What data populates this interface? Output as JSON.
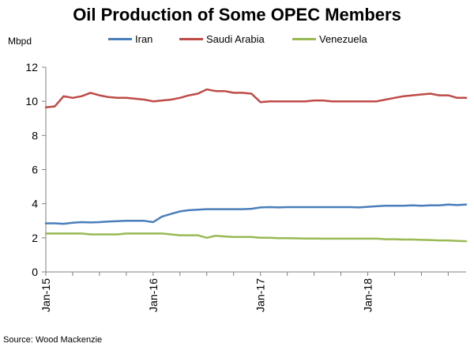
{
  "header": {
    "title": "Oil Production of Some OPEC Members",
    "unit": "Mbpd"
  },
  "footer": {
    "source": "Source: Wood Mackenzie"
  },
  "legend": [
    {
      "label": "Iran",
      "color": "#4a7ebb"
    },
    {
      "label": "Saudi Arabia",
      "color": "#be4b48"
    },
    {
      "label": "Venezuela",
      "color": "#98b954"
    }
  ],
  "chart_data": {
    "type": "line",
    "title": "Oil Production of Some OPEC Members",
    "ylabel": "Mbpd",
    "xlabel": "",
    "ylim": [
      0,
      12
    ],
    "yticks": [
      0,
      2,
      4,
      6,
      8,
      10,
      12
    ],
    "x_tick_labels": [
      "Jan-15",
      "Jan-16",
      "Jan-17",
      "Jan-18"
    ],
    "x_tick_months": [
      0,
      12,
      24,
      36
    ],
    "x_range_months": [
      0,
      47
    ],
    "grid": false,
    "legend_position": "top",
    "x": [
      "Jan-15",
      "Feb-15",
      "Mar-15",
      "Apr-15",
      "May-15",
      "Jun-15",
      "Jul-15",
      "Aug-15",
      "Sep-15",
      "Oct-15",
      "Nov-15",
      "Dec-15",
      "Jan-16",
      "Feb-16",
      "Mar-16",
      "Apr-16",
      "May-16",
      "Jun-16",
      "Jul-16",
      "Aug-16",
      "Sep-16",
      "Oct-16",
      "Nov-16",
      "Dec-16",
      "Jan-17",
      "Feb-17",
      "Mar-17",
      "Apr-17",
      "May-17",
      "Jun-17",
      "Jul-17",
      "Aug-17",
      "Sep-17",
      "Oct-17",
      "Nov-17",
      "Dec-17",
      "Jan-18",
      "Feb-18",
      "Mar-18",
      "Apr-18",
      "May-18",
      "Jun-18",
      "Jul-18",
      "Aug-18",
      "Sep-18",
      "Oct-18",
      "Nov-18",
      "Dec-18"
    ],
    "series": [
      {
        "name": "Iran",
        "color": "#4a7ebb",
        "values": [
          2.85,
          2.85,
          2.82,
          2.88,
          2.92,
          2.9,
          2.92,
          2.95,
          2.98,
          3.0,
          3.0,
          3.0,
          2.92,
          3.25,
          3.4,
          3.55,
          3.62,
          3.65,
          3.68,
          3.68,
          3.68,
          3.68,
          3.68,
          3.7,
          3.78,
          3.8,
          3.78,
          3.8,
          3.8,
          3.8,
          3.8,
          3.8,
          3.8,
          3.8,
          3.8,
          3.78,
          3.82,
          3.85,
          3.88,
          3.88,
          3.88,
          3.9,
          3.88,
          3.9,
          3.9,
          3.95,
          3.92,
          3.95
        ]
      },
      {
        "name": "Saudi Arabia",
        "color": "#be4b48",
        "values": [
          9.65,
          9.7,
          10.3,
          10.2,
          10.3,
          10.5,
          10.35,
          10.25,
          10.2,
          10.2,
          10.15,
          10.1,
          10.0,
          10.05,
          10.1,
          10.2,
          10.35,
          10.45,
          10.7,
          10.6,
          10.6,
          10.5,
          10.5,
          10.45,
          9.95,
          10.0,
          10.0,
          10.0,
          10.0,
          10.0,
          10.05,
          10.05,
          10.0,
          10.0,
          10.0,
          10.0,
          10.0,
          10.0,
          10.1,
          10.2,
          10.3,
          10.35,
          10.4,
          10.45,
          10.35,
          10.35,
          10.2,
          10.2
        ]
      },
      {
        "name": "Venezuela",
        "color": "#98b954",
        "values": [
          2.25,
          2.25,
          2.25,
          2.25,
          2.25,
          2.2,
          2.2,
          2.2,
          2.2,
          2.25,
          2.25,
          2.25,
          2.25,
          2.25,
          2.2,
          2.15,
          2.15,
          2.15,
          2.0,
          2.12,
          2.08,
          2.05,
          2.05,
          2.05,
          2.0,
          2.0,
          1.98,
          1.98,
          1.97,
          1.96,
          1.96,
          1.95,
          1.95,
          1.95,
          1.95,
          1.95,
          1.95,
          1.95,
          1.92,
          1.92,
          1.9,
          1.9,
          1.88,
          1.87,
          1.85,
          1.85,
          1.82,
          1.8
        ]
      }
    ]
  }
}
